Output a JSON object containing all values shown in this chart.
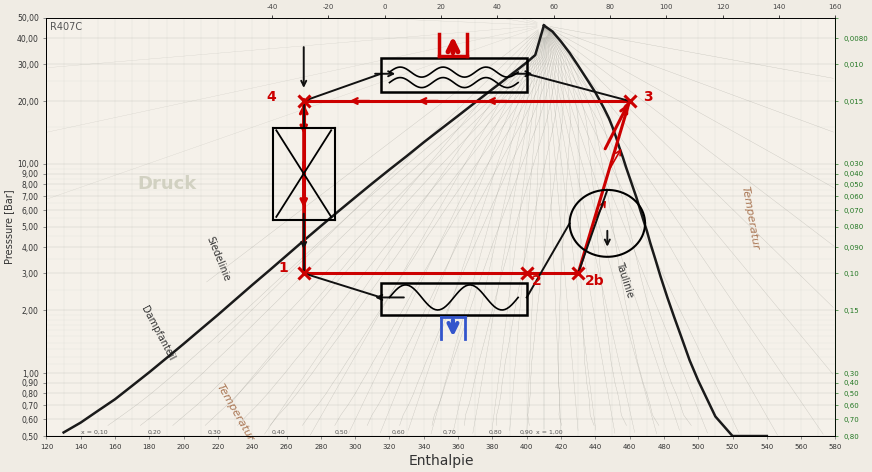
{
  "title": "R407C",
  "xlabel": "Enthalpie",
  "ylabel_left": "Presssure [Bar]",
  "bg_color": "#f0ece4",
  "grid_color_major": "#aaaaaa",
  "grid_color_minor": "#cccccc",
  "fig_width": 8.72,
  "fig_height": 4.72,
  "x_min": 120,
  "x_max": 580,
  "y_min": 0.5,
  "y_max": 50.0,
  "red_color": "#cc0000",
  "blue_color": "#3355cc",
  "black_color": "#111111",
  "cycle_p1": [
    270,
    3.0
  ],
  "cycle_p2": [
    400,
    3.0
  ],
  "cycle_p2b": [
    430,
    3.0
  ],
  "cycle_p3": [
    460,
    20.0
  ],
  "cycle_p4": [
    270,
    20.0
  ],
  "bubble_h": [
    130,
    140,
    150,
    160,
    170,
    180,
    190,
    200,
    210,
    220,
    230,
    240,
    250,
    260,
    270,
    280,
    290,
    300,
    310,
    320,
    330,
    340,
    350,
    360,
    370,
    380,
    385,
    390,
    395,
    400,
    405,
    410
  ],
  "bubble_p": [
    0.52,
    0.58,
    0.66,
    0.75,
    0.87,
    1.01,
    1.18,
    1.38,
    1.62,
    1.9,
    2.24,
    2.64,
    3.1,
    3.65,
    4.3,
    5.05,
    5.92,
    6.92,
    8.08,
    9.4,
    10.9,
    12.7,
    14.7,
    17.0,
    19.7,
    22.8,
    24.5,
    26.4,
    28.4,
    30.6,
    33.2,
    46.0
  ],
  "dew_h": [
    410,
    415,
    420,
    425,
    430,
    435,
    440,
    445,
    448,
    450,
    452,
    454,
    456,
    458,
    460,
    462,
    464,
    466,
    468,
    470,
    472,
    475,
    478,
    482,
    486,
    490,
    495,
    500,
    510,
    520,
    540
  ],
  "dew_p": [
    46.0,
    43.0,
    38.5,
    34.0,
    29.5,
    25.5,
    22.0,
    18.5,
    16.5,
    15.0,
    13.5,
    12.0,
    10.8,
    9.6,
    8.6,
    7.7,
    6.9,
    6.1,
    5.4,
    4.8,
    4.2,
    3.5,
    2.9,
    2.3,
    1.85,
    1.5,
    1.15,
    0.92,
    0.62,
    0.5,
    0.5
  ]
}
